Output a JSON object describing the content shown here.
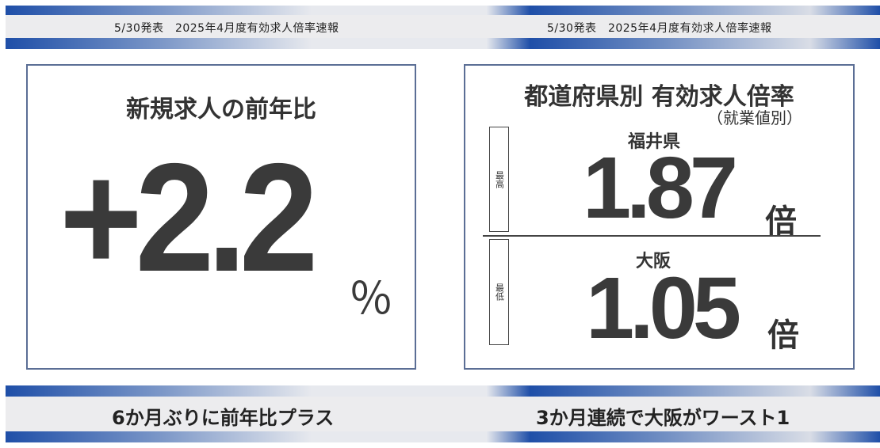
{
  "header": {
    "left_text": "5/30発表　2025年4月度有効求人倍率速報",
    "right_text": "5/30発表　2025年4月度有効求人倍率速報"
  },
  "left_panel": {
    "title": "新規求人の前年比",
    "value": "+2.2",
    "unit": "％"
  },
  "right_panel": {
    "title": "都道府県別 有効求人倍率",
    "subtitle": "（就業値別）",
    "highest": {
      "label": "最高",
      "prefecture": "福井県",
      "value": "1.87",
      "unit": "倍"
    },
    "lowest": {
      "label": "最低",
      "prefecture": "大阪",
      "value": "1.05",
      "unit": "倍"
    }
  },
  "footer": {
    "left_text": "6か月ぶりに前年比プラス",
    "right_text": "3か月連続で大阪がワースト1"
  },
  "colors": {
    "accent_blue": "#1f4fa8",
    "panel_border": "#5b6e95",
    "text_dark": "#3a3a3a"
  }
}
